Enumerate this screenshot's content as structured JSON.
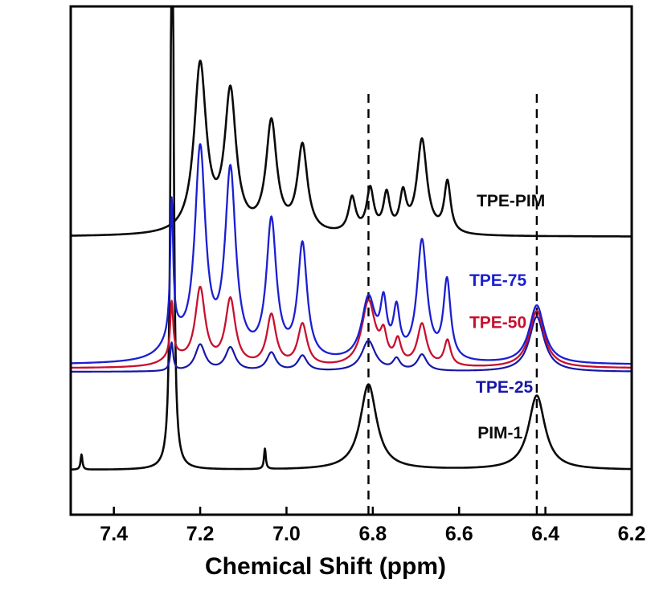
{
  "figure": {
    "background": "#ffffff",
    "axis_color": "#000000"
  },
  "chart_data": {
    "type": "line",
    "subtype": "nmr-spectra-overlay",
    "title": "",
    "xlabel": "Chemical Shift (ppm)",
    "ylabel": "",
    "x_axis": {
      "range": [
        7.5,
        6.2
      ],
      "reversed": true,
      "ticks": [
        7.4,
        7.2,
        7.0,
        6.8,
        6.6,
        6.4,
        6.2
      ],
      "tick_labels": [
        "7.4",
        "7.2",
        "7.0",
        "6.8",
        "6.6",
        "6.4",
        "6.2"
      ]
    },
    "y_axis": {
      "visible": false
    },
    "guides": {
      "ppm": [
        6.81,
        6.42
      ],
      "y_top": 0.836,
      "color": "#000000",
      "style": "dashed"
    },
    "series": [
      {
        "name": "PIM-1",
        "label": "PIM-1",
        "color": "#0a0a0a",
        "stroke_width": 2.6,
        "baseline": 0.088,
        "label_pos": {
          "ppm": 6.505,
          "y": 0.15
        },
        "peaks": [
          {
            "c": 7.475,
            "h": 0.03,
            "w": 0.0025
          },
          {
            "c": 7.265,
            "h": 1.45,
            "w": 0.0035
          },
          {
            "c": 7.05,
            "h": 0.04,
            "w": 0.0025
          },
          {
            "c": 6.81,
            "h": 0.168,
            "w": 0.023
          },
          {
            "c": 6.42,
            "h": 0.146,
            "w": 0.023
          }
        ]
      },
      {
        "name": "TPE-PIM",
        "label": "TPE-PIM",
        "color": "#0a0a0a",
        "stroke_width": 2.6,
        "baseline": 0.547,
        "label_pos": {
          "ppm": 6.48,
          "y": 0.607
        },
        "peaks": [
          {
            "c": 7.2,
            "h": 0.33,
            "w": 0.017
          },
          {
            "c": 7.13,
            "h": 0.272,
            "w": 0.016
          },
          {
            "c": 7.035,
            "h": 0.215,
            "w": 0.015
          },
          {
            "c": 6.963,
            "h": 0.17,
            "w": 0.014
          },
          {
            "c": 6.848,
            "h": 0.068,
            "w": 0.01
          },
          {
            "c": 6.806,
            "h": 0.085,
            "w": 0.01
          },
          {
            "c": 6.768,
            "h": 0.074,
            "w": 0.009
          },
          {
            "c": 6.73,
            "h": 0.072,
            "w": 0.009
          },
          {
            "c": 6.686,
            "h": 0.185,
            "w": 0.014
          },
          {
            "c": 6.627,
            "h": 0.1,
            "w": 0.009
          }
        ]
      },
      {
        "name": "TPE-25",
        "label": "TPE-25",
        "color": "#1717a8",
        "stroke_width": 2.2,
        "baseline": 0.281,
        "label_pos": {
          "ppm": 6.495,
          "y": 0.24
        },
        "peaks": [
          {
            "c": 7.266,
            "h": 0.055,
            "w": 0.004
          },
          {
            "c": 7.2,
            "h": 0.052,
            "w": 0.014
          },
          {
            "c": 7.13,
            "h": 0.046,
            "w": 0.014
          },
          {
            "c": 7.035,
            "h": 0.036,
            "w": 0.013
          },
          {
            "c": 6.963,
            "h": 0.03,
            "w": 0.013
          },
          {
            "c": 6.81,
            "h": 0.06,
            "w": 0.019
          },
          {
            "c": 6.745,
            "h": 0.022,
            "w": 0.01
          },
          {
            "c": 6.686,
            "h": 0.032,
            "w": 0.013
          },
          {
            "c": 6.42,
            "h": 0.108,
            "w": 0.021
          }
        ]
      },
      {
        "name": "TPE-50",
        "label": "TPE-50",
        "color": "#c8102e",
        "stroke_width": 2.3,
        "baseline": 0.288,
        "label_pos": {
          "ppm": 6.51,
          "y": 0.367
        },
        "peaks": [
          {
            "c": 7.266,
            "h": 0.105,
            "w": 0.004
          },
          {
            "c": 7.26,
            "h": 0.02,
            "w": 0.03
          },
          {
            "c": 7.2,
            "h": 0.15,
            "w": 0.014
          },
          {
            "c": 7.13,
            "h": 0.13,
            "w": 0.014
          },
          {
            "c": 7.035,
            "h": 0.1,
            "w": 0.013
          },
          {
            "c": 6.963,
            "h": 0.082,
            "w": 0.013
          },
          {
            "c": 6.81,
            "h": 0.128,
            "w": 0.019
          },
          {
            "c": 6.775,
            "h": 0.05,
            "w": 0.009
          },
          {
            "c": 6.742,
            "h": 0.045,
            "w": 0.009
          },
          {
            "c": 6.686,
            "h": 0.082,
            "w": 0.013
          },
          {
            "c": 6.627,
            "h": 0.05,
            "w": 0.009
          },
          {
            "c": 6.42,
            "h": 0.112,
            "w": 0.021
          }
        ]
      },
      {
        "name": "TPE-75",
        "label": "TPE-75",
        "color": "#1b1fd1",
        "stroke_width": 2.3,
        "baseline": 0.295,
        "label_pos": {
          "ppm": 6.51,
          "y": 0.45
        },
        "peaks": [
          {
            "c": 7.266,
            "h": 0.26,
            "w": 0.004
          },
          {
            "c": 7.26,
            "h": 0.045,
            "w": 0.03
          },
          {
            "c": 7.2,
            "h": 0.405,
            "w": 0.015
          },
          {
            "c": 7.13,
            "h": 0.365,
            "w": 0.015
          },
          {
            "c": 7.035,
            "h": 0.27,
            "w": 0.014
          },
          {
            "c": 6.963,
            "h": 0.225,
            "w": 0.013
          },
          {
            "c": 6.81,
            "h": 0.122,
            "w": 0.019
          },
          {
            "c": 6.775,
            "h": 0.098,
            "w": 0.009
          },
          {
            "c": 6.745,
            "h": 0.09,
            "w": 0.009
          },
          {
            "c": 6.686,
            "h": 0.235,
            "w": 0.014
          },
          {
            "c": 6.628,
            "h": 0.155,
            "w": 0.01
          },
          {
            "c": 6.42,
            "h": 0.115,
            "w": 0.021
          }
        ]
      }
    ]
  }
}
